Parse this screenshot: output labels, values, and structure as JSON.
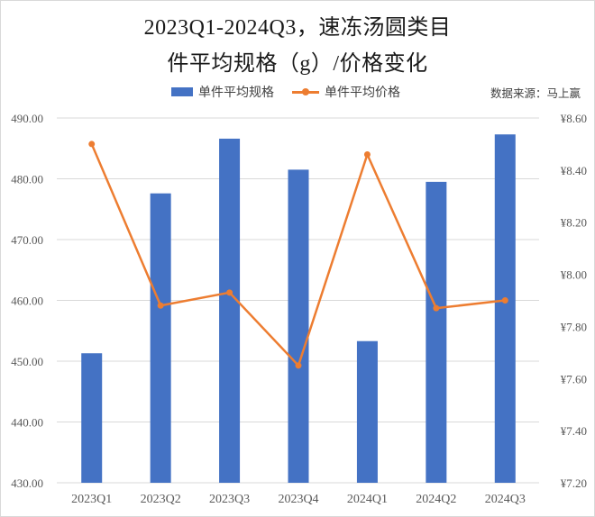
{
  "title": {
    "line1": "2023Q1-2024Q3，速冻汤圆类目",
    "line2": "件平均规格（g）/价格变化"
  },
  "legend": {
    "bar_label": "单件平均规格",
    "line_label": "单件平均价格"
  },
  "source": "数据来源：马上赢",
  "colors": {
    "bar": "#4472c4",
    "line": "#ed7d31",
    "grid": "#d9d9d9",
    "axis_text": "#595959"
  },
  "chart_data": {
    "type": "bar+line",
    "title": "2023Q1-2024Q3，速冻汤圆类目件平均规格（g）/价格变化",
    "categories": [
      "2023Q1",
      "2023Q2",
      "2023Q3",
      "2023Q4",
      "2024Q1",
      "2024Q2",
      "2024Q3"
    ],
    "series": [
      {
        "name": "单件平均规格",
        "type": "bar",
        "axis": "left",
        "values": [
          451.3,
          477.6,
          486.6,
          481.5,
          453.3,
          479.5,
          487.3
        ]
      },
      {
        "name": "单件平均价格",
        "type": "line",
        "axis": "right",
        "values": [
          8.5,
          7.88,
          7.93,
          7.65,
          8.46,
          7.87,
          7.9
        ]
      }
    ],
    "y_left": {
      "range": [
        430,
        490
      ],
      "ticks": [
        "490.00",
        "480.00",
        "470.00",
        "460.00",
        "450.00",
        "440.00",
        "430.00"
      ]
    },
    "y_right": {
      "range": [
        7.2,
        8.6
      ],
      "ticks": [
        "¥8.60",
        "¥8.40",
        "¥8.20",
        "¥8.00",
        "¥7.80",
        "¥7.60",
        "¥7.40",
        "¥7.20"
      ]
    },
    "xlabel": "",
    "ylabel_left": "",
    "ylabel_right": "",
    "grid": true,
    "legend_position": "top",
    "annotation": "数据来源：马上赢"
  }
}
